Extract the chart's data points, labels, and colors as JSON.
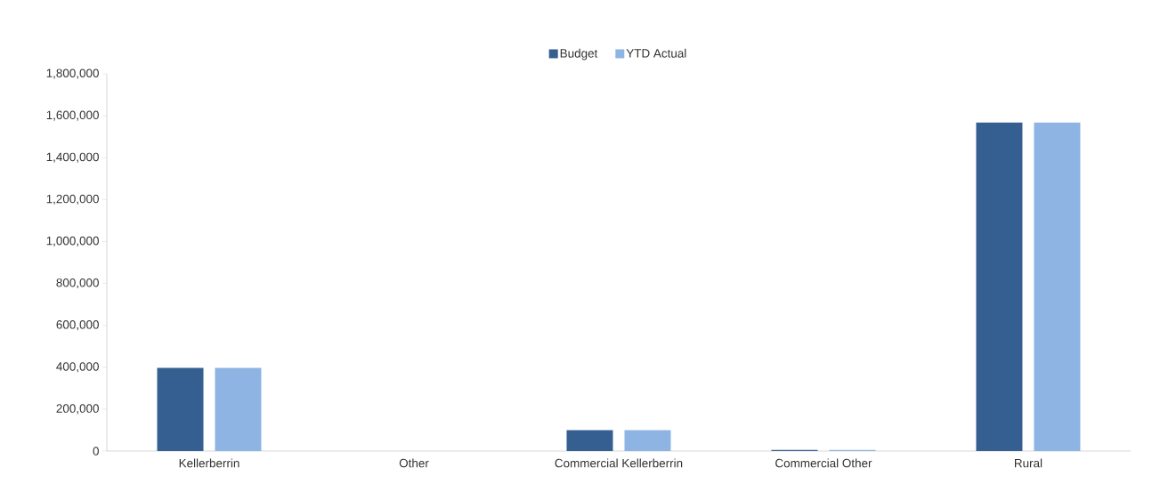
{
  "chart_data": {
    "type": "bar",
    "categories": [
      "Kellerberrin",
      "Other",
      "Commercial Kellerberrin",
      "Commercial Other",
      "Rural"
    ],
    "series": [
      {
        "name": "Budget",
        "color": "#355f91",
        "values": [
          397000,
          0,
          100000,
          5000,
          1567000
        ]
      },
      {
        "name": "YTD Actual",
        "color": "#8eb4e3",
        "values": [
          397000,
          0,
          100000,
          5000,
          1567000
        ]
      }
    ],
    "ylim": [
      0,
      1800000
    ],
    "yticks": [
      {
        "value": 0,
        "label": "0"
      },
      {
        "value": 200000,
        "label": "200,000"
      },
      {
        "value": 400000,
        "label": "400,000"
      },
      {
        "value": 600000,
        "label": "600,000"
      },
      {
        "value": 800000,
        "label": "800,000"
      },
      {
        "value": 1000000,
        "label": "1,000,000"
      },
      {
        "value": 1200000,
        "label": "1,200,000"
      },
      {
        "value": 1400000,
        "label": "1,400,000"
      },
      {
        "value": 1600000,
        "label": "1,600,000"
      },
      {
        "value": 1800000,
        "label": "1,800,000"
      }
    ],
    "grid": false,
    "legend": "top"
  }
}
